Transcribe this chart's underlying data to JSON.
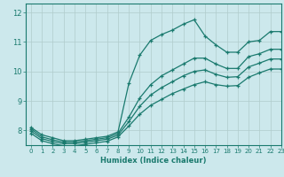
{
  "xlabel": "Humidex (Indice chaleur)",
  "bg_color": "#cce8ec",
  "grid_color": "#b0cccc",
  "line_color": "#1a7a6e",
  "xlim": [
    -0.5,
    23
  ],
  "ylim": [
    7.5,
    12.3
  ],
  "xticks": [
    0,
    1,
    2,
    3,
    4,
    5,
    6,
    7,
    8,
    9,
    10,
    11,
    12,
    13,
    14,
    15,
    16,
    17,
    18,
    19,
    20,
    21,
    22,
    23
  ],
  "yticks": [
    8,
    9,
    10,
    11,
    12
  ],
  "hours": [
    0,
    1,
    2,
    3,
    4,
    5,
    6,
    7,
    8,
    9,
    10,
    11,
    12,
    13,
    14,
    15,
    16,
    17,
    18,
    19,
    20,
    21,
    22,
    23
  ],
  "line1": [
    8.1,
    7.85,
    7.75,
    7.65,
    7.65,
    7.7,
    7.75,
    7.8,
    7.95,
    9.6,
    10.55,
    11.05,
    11.25,
    11.4,
    11.6,
    11.75,
    11.2,
    10.9,
    10.65,
    10.65,
    11.0,
    11.05,
    11.35,
    11.35
  ],
  "line2": [
    8.05,
    7.78,
    7.68,
    7.6,
    7.6,
    7.65,
    7.7,
    7.75,
    7.9,
    8.45,
    9.1,
    9.55,
    9.85,
    10.05,
    10.25,
    10.45,
    10.45,
    10.25,
    10.1,
    10.1,
    10.5,
    10.6,
    10.75,
    10.75
  ],
  "line3": [
    7.98,
    7.72,
    7.62,
    7.55,
    7.55,
    7.6,
    7.65,
    7.7,
    7.84,
    8.3,
    8.82,
    9.2,
    9.45,
    9.65,
    9.85,
    10.0,
    10.05,
    9.9,
    9.8,
    9.82,
    10.15,
    10.28,
    10.42,
    10.42
  ],
  "line4": [
    7.9,
    7.65,
    7.55,
    7.48,
    7.48,
    7.53,
    7.58,
    7.63,
    7.78,
    8.15,
    8.55,
    8.85,
    9.05,
    9.25,
    9.4,
    9.55,
    9.65,
    9.55,
    9.5,
    9.52,
    9.8,
    9.95,
    10.08,
    10.08
  ]
}
